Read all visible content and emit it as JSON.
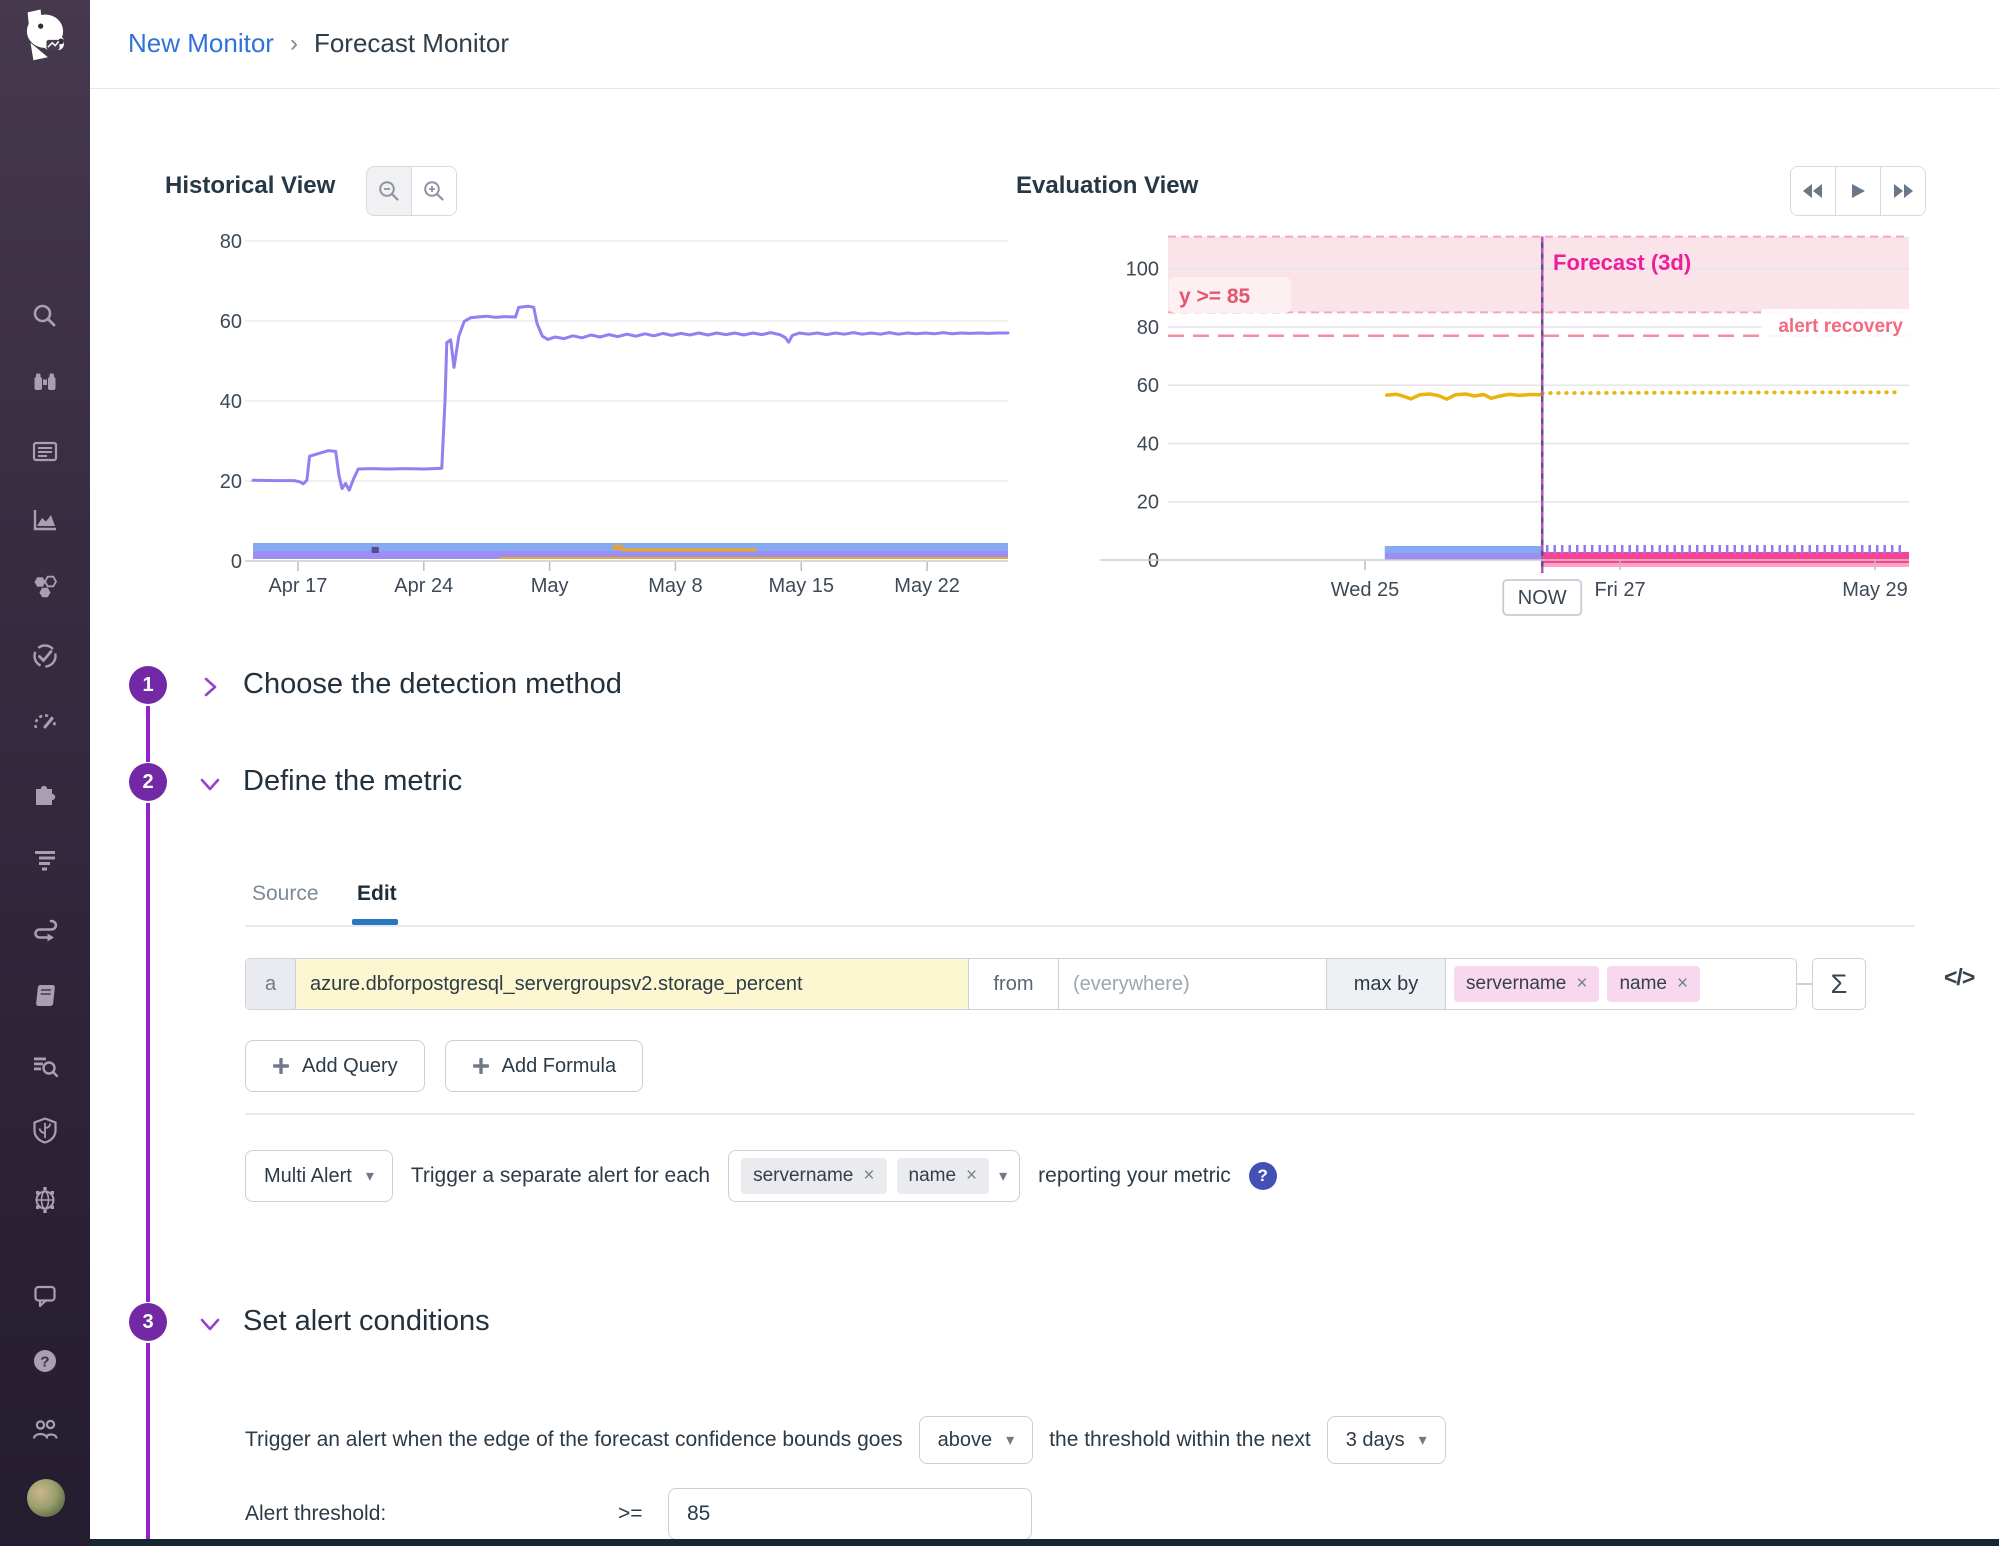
{
  "breadcrumb": {
    "link": "New Monitor",
    "separator": "›",
    "current": "Forecast Monitor"
  },
  "ui": {
    "remove_glyph": "×",
    "caret_glyph": "▾",
    "help_glyph": "?"
  },
  "sidebar": {
    "icons": [
      "search",
      "binoculars-watchdog",
      "events-list",
      "metrics-chart",
      "infrastructure-hexagons",
      "monitors-check",
      "apm-gauge",
      "integrations-puzzle",
      "logs-filter",
      "pipelines-link",
      "notebooks-book",
      "log-search",
      "security-shield",
      "network-globe",
      "support-chat",
      "help",
      "organization-users",
      "user-avatar"
    ]
  },
  "steps": [
    {
      "number": "1",
      "title": "Choose the detection method",
      "state": "collapsed"
    },
    {
      "number": "2",
      "title": "Define the metric",
      "state": "expanded"
    },
    {
      "number": "3",
      "title": "Set alert conditions",
      "state": "expanded"
    }
  ],
  "metric_section": {
    "tabs": [
      {
        "label": "Source"
      },
      {
        "label": "Edit"
      }
    ],
    "query": {
      "letter": "a",
      "metric": "azure.dbforpostgresql_servergroupsv2.storage_percent",
      "from_label": "from",
      "scope_placeholder": "(everywhere)",
      "agg": "max by",
      "groups": [
        "servername",
        "name"
      ],
      "sigma": "Σ",
      "code_label": "</>"
    },
    "buttons": {
      "add_query": "Add Query",
      "add_formula": "Add Formula"
    },
    "alert_grouping": {
      "mode": "Multi Alert",
      "text": "Trigger a separate alert for each",
      "tags": [
        "servername",
        "name"
      ],
      "suffix": "reporting your metric"
    }
  },
  "conditions_section": {
    "sentence_before": "Trigger an alert when the edge of the forecast confidence bounds goes",
    "comparator": "above",
    "sentence_middle": "the threshold within the next",
    "window": "3 days",
    "threshold_label": "Alert threshold:",
    "threshold_operator": ">=",
    "threshold_value": "85"
  },
  "colors": {
    "accent_purple": "#7329a6",
    "connector_purple": "#9223cb",
    "link_blue": "#2f73d9",
    "tab_blue": "#2679bf",
    "line_purple": "#8f81f1",
    "band_blue": "#85aaf4",
    "band_purple": "#9e8df3",
    "band_orange": "#dfa93c",
    "threshold_red": "#e4556e",
    "zone_fill": "#fbe4e9",
    "zone_border": "#f3a9bb",
    "recovery_pink": "#f4697f",
    "forecast_magenta": "#ed1e9c",
    "metric_yellow": "#e7b50b",
    "forecast_bar_pink": "#fb4191",
    "query_yellow": "#fcf7d0",
    "tag_pink": "#f8d8ee",
    "help_blue": "#4350b5"
  },
  "chart_data": [
    {
      "id": "historical",
      "type": "line",
      "title": "Historical View",
      "controls": [
        "zoom-out",
        "zoom-in"
      ],
      "xlabel": "",
      "ylabel": "",
      "x_domain": [
        0,
        42
      ],
      "x_ticks": [
        {
          "day": 2.5,
          "label": "Apr 17"
        },
        {
          "day": 9.5,
          "label": "Apr 24"
        },
        {
          "day": 16.5,
          "label": "May"
        },
        {
          "day": 23.5,
          "label": "May 8"
        },
        {
          "day": 30.5,
          "label": "May 15"
        },
        {
          "day": 37.5,
          "label": "May 22"
        }
      ],
      "y_ticks": [
        80,
        60,
        40,
        20,
        0
      ],
      "ylim": [
        0,
        83
      ],
      "series": [
        {
          "name": "storage_percent",
          "color": "#8f81f1",
          "points": [
            [
              0,
              20.2
            ],
            [
              1.2,
              20.1
            ],
            [
              2.3,
              20.1
            ],
            [
              2.6,
              19.8
            ],
            [
              2.8,
              19.3
            ],
            [
              3.0,
              20.2
            ],
            [
              3.15,
              26.2
            ],
            [
              3.6,
              26.8
            ],
            [
              4.2,
              27.6
            ],
            [
              4.6,
              27.4
            ],
            [
              4.78,
              21.5
            ],
            [
              4.95,
              18.1
            ],
            [
              5.15,
              19.4
            ],
            [
              5.35,
              17.7
            ],
            [
              5.6,
              20.6
            ],
            [
              5.85,
              23.0
            ],
            [
              6.5,
              23.1
            ],
            [
              7.5,
              23.0
            ],
            [
              8.5,
              23.1
            ],
            [
              9.5,
              23.0
            ],
            [
              10.5,
              23.2
            ],
            [
              10.68,
              40.0
            ],
            [
              10.78,
              54.6
            ],
            [
              11.0,
              55.3
            ],
            [
              11.18,
              48.4
            ],
            [
              11.45,
              56.2
            ],
            [
              11.75,
              59.9
            ],
            [
              12.1,
              60.8
            ],
            [
              12.5,
              61.0
            ],
            [
              13.0,
              61.2
            ],
            [
              13.5,
              60.9
            ],
            [
              14.0,
              61.1
            ],
            [
              14.6,
              61.0
            ],
            [
              14.78,
              63.4
            ],
            [
              15.3,
              63.7
            ],
            [
              15.62,
              63.4
            ],
            [
              15.8,
              59.4
            ],
            [
              16.1,
              56.2
            ],
            [
              16.4,
              55.4
            ],
            [
              16.8,
              56.0
            ],
            [
              17.3,
              55.6
            ],
            [
              17.8,
              56.3
            ],
            [
              18.3,
              55.8
            ],
            [
              18.8,
              56.5
            ],
            [
              19.3,
              56.0
            ],
            [
              19.8,
              56.6
            ],
            [
              20.3,
              56.1
            ],
            [
              20.8,
              56.7
            ],
            [
              21.3,
              56.2
            ],
            [
              21.8,
              56.8
            ],
            [
              22.3,
              56.3
            ],
            [
              22.8,
              56.9
            ],
            [
              23.3,
              56.4
            ],
            [
              23.8,
              56.9
            ],
            [
              24.3,
              56.5
            ],
            [
              24.8,
              57.0
            ],
            [
              25.3,
              56.5
            ],
            [
              25.8,
              57.0
            ],
            [
              26.3,
              56.6
            ],
            [
              26.8,
              57.0
            ],
            [
              27.3,
              56.5
            ],
            [
              27.8,
              57.0
            ],
            [
              28.3,
              56.6
            ],
            [
              28.8,
              57.1
            ],
            [
              29.3,
              56.6
            ],
            [
              29.6,
              55.9
            ],
            [
              29.8,
              54.7
            ],
            [
              30.0,
              56.4
            ],
            [
              30.4,
              57.0
            ],
            [
              30.9,
              56.7
            ],
            [
              31.4,
              57.0
            ],
            [
              31.9,
              56.6
            ],
            [
              32.4,
              57.0
            ],
            [
              32.9,
              56.7
            ],
            [
              33.4,
              57.1
            ],
            [
              33.9,
              56.7
            ],
            [
              34.4,
              57.0
            ],
            [
              34.9,
              56.7
            ],
            [
              35.4,
              57.1
            ],
            [
              35.9,
              56.7
            ],
            [
              36.4,
              57.0
            ],
            [
              36.9,
              56.8
            ],
            [
              37.4,
              57.0
            ],
            [
              37.9,
              56.8
            ],
            [
              38.4,
              57.1
            ],
            [
              38.9,
              56.8
            ],
            [
              39.4,
              57.0
            ],
            [
              39.9,
              56.9
            ],
            [
              40.4,
              57.0
            ],
            [
              40.9,
              56.9
            ],
            [
              41.4,
              57.0
            ],
            [
              42,
              57.0
            ]
          ]
        }
      ],
      "band": {
        "rows": [
          {
            "color": "#85aaf4",
            "offset": 18,
            "height": 8
          },
          {
            "color": "#9e8df3",
            "offset": 10,
            "height": 8
          }
        ],
        "segments": [
          {
            "color": "#dfa93c",
            "x0": 20.5,
            "x1": 28.0,
            "offset": 13,
            "height": 3.5
          },
          {
            "color": "#dfa93c",
            "x0": 13.7,
            "x1": 42.0,
            "offset": 4,
            "height": 2
          },
          {
            "color": "#e2a33d",
            "x0": 20.0,
            "x1": 20.6,
            "offset": 16,
            "height": 5
          },
          {
            "color": "#5b4a8c",
            "x0": 6.6,
            "x1": 7.0,
            "offset": 14,
            "height": 6
          }
        ]
      }
    },
    {
      "id": "evaluation",
      "type": "line",
      "title": "Evaluation View",
      "controls": [
        "skip-back",
        "play",
        "skip-forward"
      ],
      "x_ticks": [
        {
          "day": 0,
          "label": "Wed 25"
        },
        {
          "day": 2,
          "label": "Fri 27"
        },
        {
          "day": 4,
          "label": "May 29"
        }
      ],
      "y_ticks": [
        100,
        80,
        60,
        40,
        20,
        0
      ],
      "ylim": [
        0,
        111
      ],
      "threshold_zone": {
        "from": 85,
        "to": 111,
        "label": "y >= 85",
        "fill": "#fbe4e9",
        "border": "#f3a9bb",
        "label_color": "#e4556e"
      },
      "recovery": {
        "value": 77,
        "label": "alert recovery",
        "color": "#f78da1",
        "label_color": "#f4697f"
      },
      "now": {
        "day": 1.39,
        "label": "NOW"
      },
      "forecast_label": "Forecast (3d)",
      "series": [
        {
          "name": "observed",
          "color": "#e7b50b",
          "points": [
            [
              0.17,
              56.6
            ],
            [
              0.25,
              56.9
            ],
            [
              0.31,
              56.1
            ],
            [
              0.36,
              55.3
            ],
            [
              0.43,
              56.7
            ],
            [
              0.51,
              57.0
            ],
            [
              0.58,
              56.4
            ],
            [
              0.64,
              55.2
            ],
            [
              0.71,
              56.7
            ],
            [
              0.79,
              57.0
            ],
            [
              0.86,
              56.3
            ],
            [
              0.93,
              56.8
            ],
            [
              0.99,
              55.5
            ],
            [
              1.06,
              56.3
            ],
            [
              1.13,
              56.9
            ],
            [
              1.21,
              56.5
            ],
            [
              1.3,
              56.8
            ],
            [
              1.39,
              56.7
            ]
          ]
        }
      ],
      "forecast_line": {
        "from_day": 1.39,
        "to_day": 4.16,
        "from_value": 57.3,
        "to_value": 57.6,
        "color": "#e7b50b",
        "style": "dotted"
      },
      "bars": {
        "history": {
          "x0": 0.155,
          "x1": 1.39,
          "rows": [
            {
              "color": "#85aaf4"
            },
            {
              "color": "#9e8df3"
            }
          ]
        },
        "forecast": {
          "x0": 1.39,
          "x1": 4.27,
          "color": "#fb4191",
          "light": "#ffa1c9",
          "tick_color": "#8f7bef"
        }
      }
    }
  ]
}
